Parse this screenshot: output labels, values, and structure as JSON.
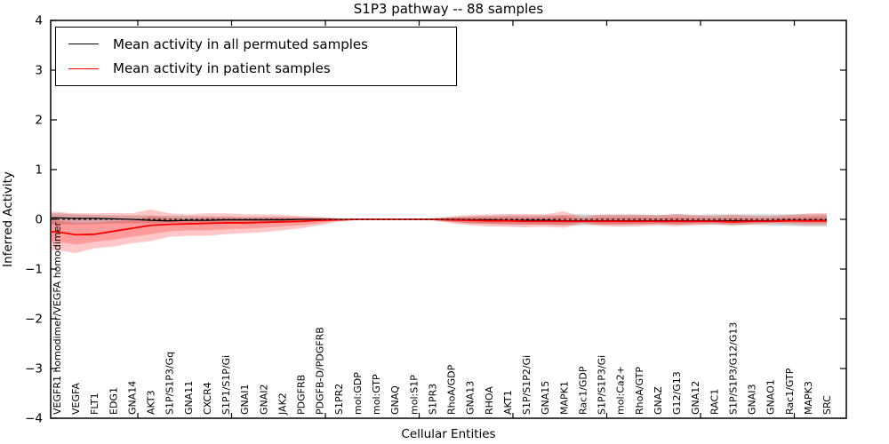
{
  "chart_data": {
    "type": "line",
    "title": "S1P3 pathway -- 88 samples",
    "xlabel": "Cellular Entities",
    "ylabel": "Inferred Activity",
    "ylim": [
      -4,
      4
    ],
    "yticks": [
      4,
      3,
      2,
      1,
      0,
      -1,
      -2,
      -3,
      -4
    ],
    "ytick_labels": [
      "4",
      "3",
      "2",
      "1",
      "0",
      "−1",
      "−2",
      "−3",
      "−4"
    ],
    "grid": false,
    "legend": {
      "position": "upper left"
    },
    "categories": [
      "VEGFR1 homodimer/VEGFA homodimer",
      "VEGFA",
      "FLT1",
      "EDG1",
      "GNA14",
      "AKT3",
      "S1P/S1P3/Gq",
      "GNA11",
      "CXCR4",
      "S1P1/S1P/Gi",
      "GNAI1",
      "GNAI2",
      "JAK2",
      "PDGFRB",
      "PDGFB-D/PDGFRB",
      "S1PR2",
      "mol:GDP",
      "mol:GTP",
      "GNAQ",
      "mol:S1P",
      "S1PR3",
      "RhoA/GDP",
      "GNA13",
      "RHOA",
      "AKT1",
      "S1P/S1P2/Gi",
      "GNA15",
      "MAPK1",
      "Rac1/GDP",
      "S1P/S1P3/Gi",
      "mol:Ca2+",
      "RhoA/GTP",
      "GNAZ",
      "G12/G13",
      "GNA12",
      "RAC1",
      "S1P/S1P3/G12/G13",
      "GNAI3",
      "GNAO1",
      "Rac1/GTP",
      "MAPK3",
      "SRC"
    ],
    "series": [
      {
        "name": "Mean activity in all permuted samples",
        "color": "#000000",
        "width": 1.3,
        "values": [
          0.03,
          0.02,
          0.02,
          0.01,
          0.0,
          -0.02,
          -0.03,
          -0.02,
          -0.02,
          -0.01,
          -0.01,
          -0.01,
          -0.01,
          0.0,
          0.0,
          0.0,
          0.0,
          0.0,
          0.0,
          0.0,
          0.0,
          0.0,
          -0.01,
          -0.01,
          -0.02,
          -0.02,
          -0.02,
          -0.03,
          -0.03,
          -0.03,
          -0.03,
          -0.03,
          -0.03,
          -0.03,
          -0.03,
          -0.03,
          -0.03,
          -0.03,
          -0.03,
          -0.02,
          -0.02,
          -0.02
        ]
      },
      {
        "name": "Mean activity in patient samples",
        "color": "#ff0000",
        "width": 1.8,
        "values": [
          -0.25,
          -0.31,
          -0.3,
          -0.24,
          -0.18,
          -0.12,
          -0.1,
          -0.09,
          -0.08,
          -0.07,
          -0.07,
          -0.06,
          -0.05,
          -0.04,
          -0.02,
          -0.01,
          0.0,
          0.0,
          0.0,
          0.0,
          0.0,
          -0.01,
          -0.02,
          -0.03,
          -0.03,
          -0.04,
          -0.04,
          -0.04,
          -0.04,
          -0.04,
          -0.04,
          -0.04,
          -0.04,
          -0.04,
          -0.04,
          -0.04,
          -0.05,
          -0.04,
          -0.04,
          -0.03,
          -0.03,
          -0.03
        ]
      }
    ],
    "bands": [
      {
        "name": "permuted-samples-spread",
        "color": "#999999",
        "opacity": 0.45,
        "lo": [
          -0.1,
          -0.1,
          -0.09,
          -0.08,
          -0.08,
          -0.08,
          -0.07,
          -0.07,
          -0.06,
          -0.06,
          -0.05,
          -0.05,
          -0.05,
          -0.04,
          -0.03,
          -0.02,
          -0.01,
          -0.01,
          -0.01,
          -0.01,
          -0.02,
          -0.05,
          -0.08,
          -0.09,
          -0.1,
          -0.1,
          -0.11,
          -0.12,
          -0.12,
          -0.11,
          -0.11,
          -0.1,
          -0.1,
          -0.11,
          -0.1,
          -0.11,
          -0.12,
          -0.11,
          -0.12,
          -0.13,
          -0.14,
          -0.14
        ],
        "hi": [
          0.12,
          0.1,
          0.09,
          0.08,
          0.08,
          0.08,
          0.07,
          0.07,
          0.06,
          0.06,
          0.05,
          0.05,
          0.05,
          0.04,
          0.03,
          0.02,
          0.01,
          0.01,
          0.01,
          0.01,
          0.02,
          0.04,
          0.06,
          0.07,
          0.08,
          0.08,
          0.08,
          0.09,
          0.1,
          0.09,
          0.09,
          0.09,
          0.09,
          0.1,
          0.09,
          0.1,
          0.1,
          0.1,
          0.1,
          0.1,
          0.1,
          0.1
        ]
      },
      {
        "name": "patient-samples-spread-outer",
        "color": "#ff0000",
        "opacity": 0.22,
        "lo": [
          -0.62,
          -0.68,
          -0.58,
          -0.55,
          -0.48,
          -0.44,
          -0.35,
          -0.33,
          -0.33,
          -0.3,
          -0.28,
          -0.26,
          -0.22,
          -0.18,
          -0.12,
          -0.05,
          -0.01,
          -0.01,
          -0.01,
          -0.01,
          -0.02,
          -0.08,
          -0.12,
          -0.14,
          -0.15,
          -0.16,
          -0.15,
          -0.17,
          -0.08,
          -0.14,
          -0.15,
          -0.14,
          -0.12,
          -0.14,
          -0.12,
          -0.1,
          -0.12,
          -0.1,
          -0.08,
          -0.09,
          -0.11,
          -0.11
        ],
        "hi": [
          0.15,
          0.12,
          0.12,
          0.13,
          0.12,
          0.2,
          0.12,
          0.1,
          0.12,
          0.12,
          0.1,
          0.1,
          0.09,
          0.07,
          0.05,
          0.02,
          0.01,
          0.01,
          0.01,
          0.01,
          0.02,
          0.06,
          0.09,
          0.1,
          0.11,
          0.11,
          0.1,
          0.16,
          0.05,
          0.1,
          0.1,
          0.1,
          0.08,
          0.11,
          0.08,
          0.07,
          0.09,
          0.07,
          0.06,
          0.09,
          0.12,
          0.13
        ]
      },
      {
        "name": "patient-samples-spread-inner",
        "color": "#ff0000",
        "opacity": 0.22,
        "lo": [
          -0.45,
          -0.51,
          -0.45,
          -0.41,
          -0.35,
          -0.3,
          -0.24,
          -0.22,
          -0.22,
          -0.2,
          -0.19,
          -0.17,
          -0.14,
          -0.12,
          -0.08,
          -0.03,
          -0.01,
          -0.01,
          -0.01,
          -0.01,
          -0.01,
          -0.05,
          -0.08,
          -0.09,
          -0.1,
          -0.11,
          -0.1,
          -0.11,
          -0.06,
          -0.1,
          -0.1,
          -0.1,
          -0.08,
          -0.1,
          -0.08,
          -0.07,
          -0.09,
          -0.07,
          -0.06,
          -0.06,
          -0.07,
          -0.07
        ],
        "hi": [
          -0.03,
          -0.07,
          -0.07,
          -0.04,
          -0.02,
          0.06,
          0.02,
          0.01,
          0.03,
          0.03,
          0.02,
          0.03,
          0.03,
          0.02,
          0.02,
          0.01,
          0.01,
          0.01,
          0.01,
          0.01,
          0.01,
          0.03,
          0.04,
          0.04,
          0.05,
          0.04,
          0.04,
          0.07,
          0.01,
          0.04,
          0.04,
          0.04,
          0.03,
          0.04,
          0.03,
          0.02,
          0.03,
          0.02,
          0.02,
          0.04,
          0.05,
          0.06
        ]
      }
    ],
    "reference_line": {
      "y": 0,
      "color": "#000000",
      "style": "dashed"
    }
  }
}
